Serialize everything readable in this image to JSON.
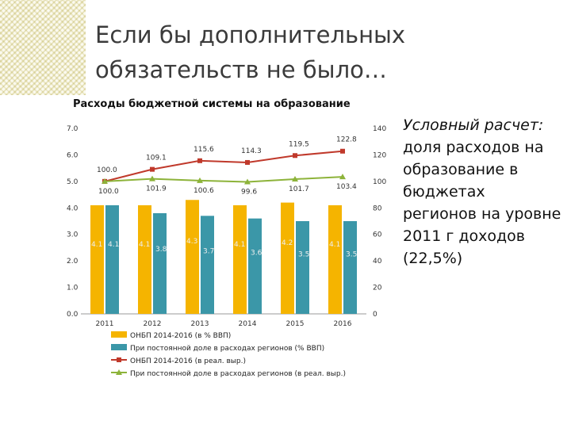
{
  "slide": {
    "title_line1": "Если бы дополнительных",
    "title_line2": "обязательств не было…",
    "note_emph": "Условный расчет:",
    "note_rest": " доля расходов на образование в бюджетах регионов на уровне 2011 г доходов (22,5%)"
  },
  "colors": {
    "orange": "#f5b400",
    "teal": "#3b97a8",
    "red": "#c0392b",
    "green": "#8db33a"
  },
  "chart_data": {
    "type": "bar",
    "title": "Расходы бюджетной системы на образование",
    "categories": [
      "2011",
      "2012",
      "2013",
      "2014",
      "2015",
      "2016"
    ],
    "ylim_left": [
      0,
      7
    ],
    "ylim_right": [
      0,
      140
    ],
    "left_ticks": [
      "0.0",
      "1.0",
      "2.0",
      "3.0",
      "4.0",
      "5.0",
      "6.0",
      "7.0"
    ],
    "right_ticks": [
      "0",
      "20",
      "40",
      "60",
      "80",
      "100",
      "120",
      "140"
    ],
    "bar_series": [
      {
        "name": "ОНБП 2014-2016 (в % ВВП)",
        "values": [
          4.1,
          4.1,
          4.3,
          4.1,
          4.2,
          4.1
        ],
        "labels": [
          "4.1",
          "4.1",
          "4.3",
          "4.1",
          "4.2",
          "4.1"
        ]
      },
      {
        "name": "При постоянной доле в расходах регионов (% ВВП)",
        "values": [
          4.1,
          3.8,
          3.7,
          3.6,
          3.5,
          3.5
        ],
        "labels": [
          "4.1",
          "3.8",
          "3.7",
          "3.6",
          "3.5",
          "3.5"
        ]
      }
    ],
    "line_series": [
      {
        "name": "ОНБП 2014-2016 (в реал. выр.)",
        "values": [
          100.0,
          109.1,
          115.6,
          114.3,
          119.5,
          122.8
        ],
        "labels": [
          "100.0",
          "109.1",
          "115.6",
          "114.3",
          "119.5",
          "122.8"
        ]
      },
      {
        "name": "При постоянной доле в расходах регионов (в реал. выр.)",
        "values": [
          100.0,
          101.9,
          100.6,
          99.6,
          101.7,
          103.4
        ],
        "labels": [
          "100.0",
          "101.9",
          "100.6",
          "99.6",
          "101.7",
          "103.4"
        ]
      }
    ]
  }
}
